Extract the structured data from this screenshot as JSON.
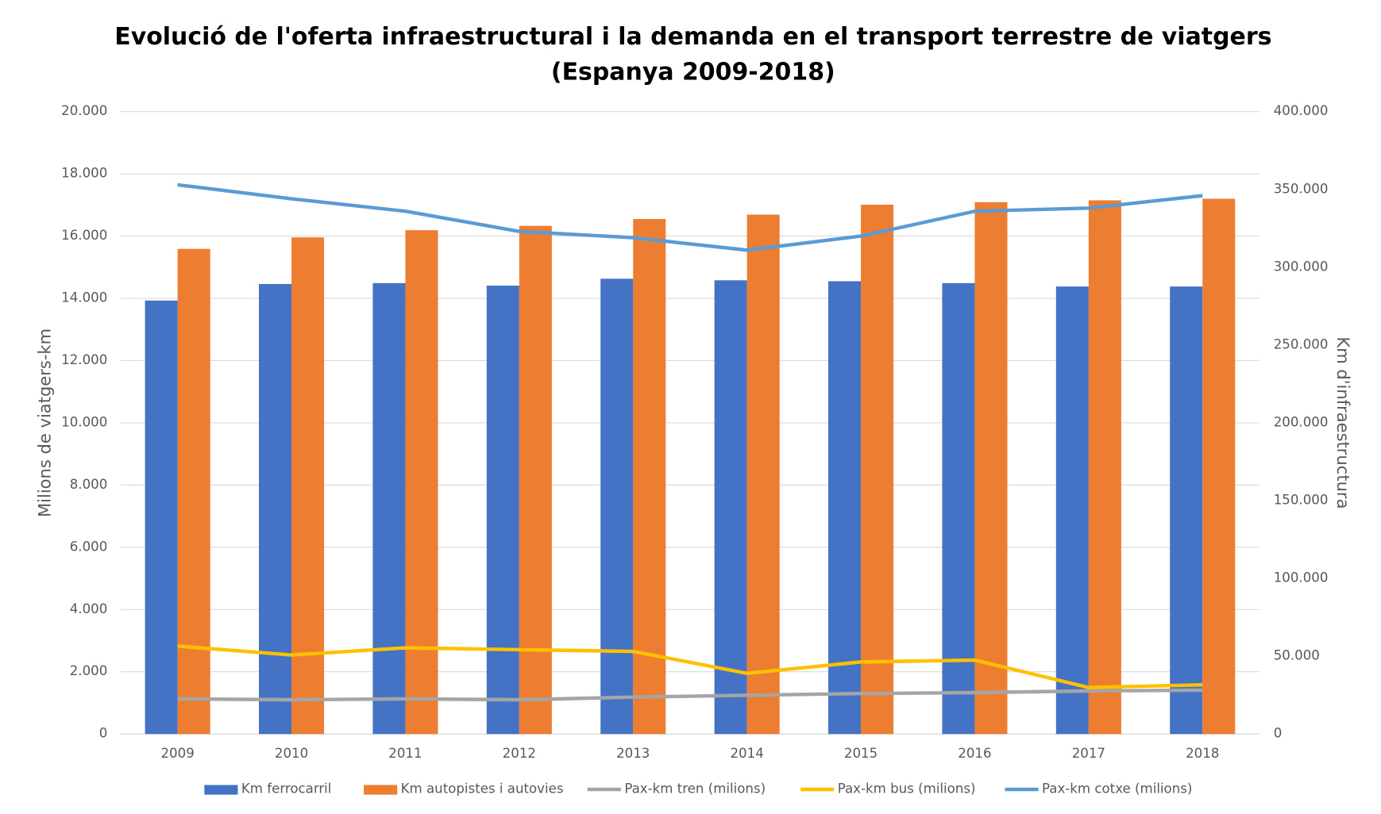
{
  "chart_data": {
    "type": "bar",
    "title": "Evolució de l'oferta infraestructural i la demanda en el transport terrestre de viatgers",
    "subtitle": "(Espanya 2009-2018)",
    "y_label": "Milions de viatgers-km",
    "y2_label": "Km d'infraestructura",
    "categories": [
      "2009",
      "2010",
      "2011",
      "2012",
      "2013",
      "2014",
      "2015",
      "2016",
      "2017",
      "2018"
    ],
    "series": [
      {
        "name": "Km ferrocarril",
        "type": "bar",
        "color": "#4472c4",
        "values": [
          13930,
          14460,
          14490,
          14410,
          14630,
          14580,
          14550,
          14490,
          14380,
          14380
        ]
      },
      {
        "name": "Km autopistes i autovies",
        "type": "bar",
        "color": "#ed7d31",
        "values": [
          15590,
          15960,
          16190,
          16330,
          16550,
          16690,
          17010,
          17090,
          17150,
          17200
        ]
      },
      {
        "name": "Pax-km tren (milions)",
        "type": "line",
        "axis": "y2",
        "color": "#a5a5a5",
        "values": [
          22600,
          22000,
          22600,
          22000,
          23700,
          24900,
          26000,
          26600,
          27700,
          28200
        ]
      },
      {
        "name": "Pax-km bus (milions)",
        "type": "line",
        "axis": "y2",
        "color": "#ffc000",
        "values": [
          56500,
          50800,
          55400,
          54200,
          53100,
          39000,
          46300,
          47500,
          29900,
          31600
        ]
      },
      {
        "name": "Pax-km cotxe (milions)",
        "type": "line",
        "axis": "y2",
        "color": "#5b9bd5",
        "values": [
          353000,
          344000,
          336000,
          323000,
          319000,
          311000,
          320000,
          336000,
          338000,
          346000
        ]
      }
    ],
    "ylim": [
      0,
      20000
    ],
    "yticks": [
      0,
      {
        "value": 2000,
        "label": "2.000"
      },
      {
        "value": 4000,
        "label": "4.000"
      },
      {
        "value": 6000,
        "label": "6.000"
      },
      {
        "value": 8000,
        "label": "8.000"
      },
      {
        "value": 10000,
        "label": "10.000"
      },
      {
        "value": 12000,
        "label": "12.000"
      },
      {
        "value": 14000,
        "label": "14.000"
      },
      {
        "value": 16000,
        "label": "16.000"
      },
      {
        "value": 18000,
        "label": "18.000"
      },
      {
        "value": 20000,
        "label": "20.000"
      }
    ],
    "y2lim": [
      0,
      400000
    ],
    "y2ticks": [
      0,
      {
        "value": 50000,
        "label": "50.000"
      },
      {
        "value": 100000,
        "label": "100.000"
      },
      {
        "value": 150000,
        "label": "150.000"
      },
      {
        "value": 200000,
        "label": "200.000"
      },
      {
        "value": 250000,
        "label": "250.000"
      },
      {
        "value": 300000,
        "label": "300.000"
      },
      {
        "value": 350000,
        "label": "350.000"
      },
      {
        "value": 400000,
        "label": "400.000"
      }
    ],
    "grid": true,
    "legend": "bottom"
  }
}
